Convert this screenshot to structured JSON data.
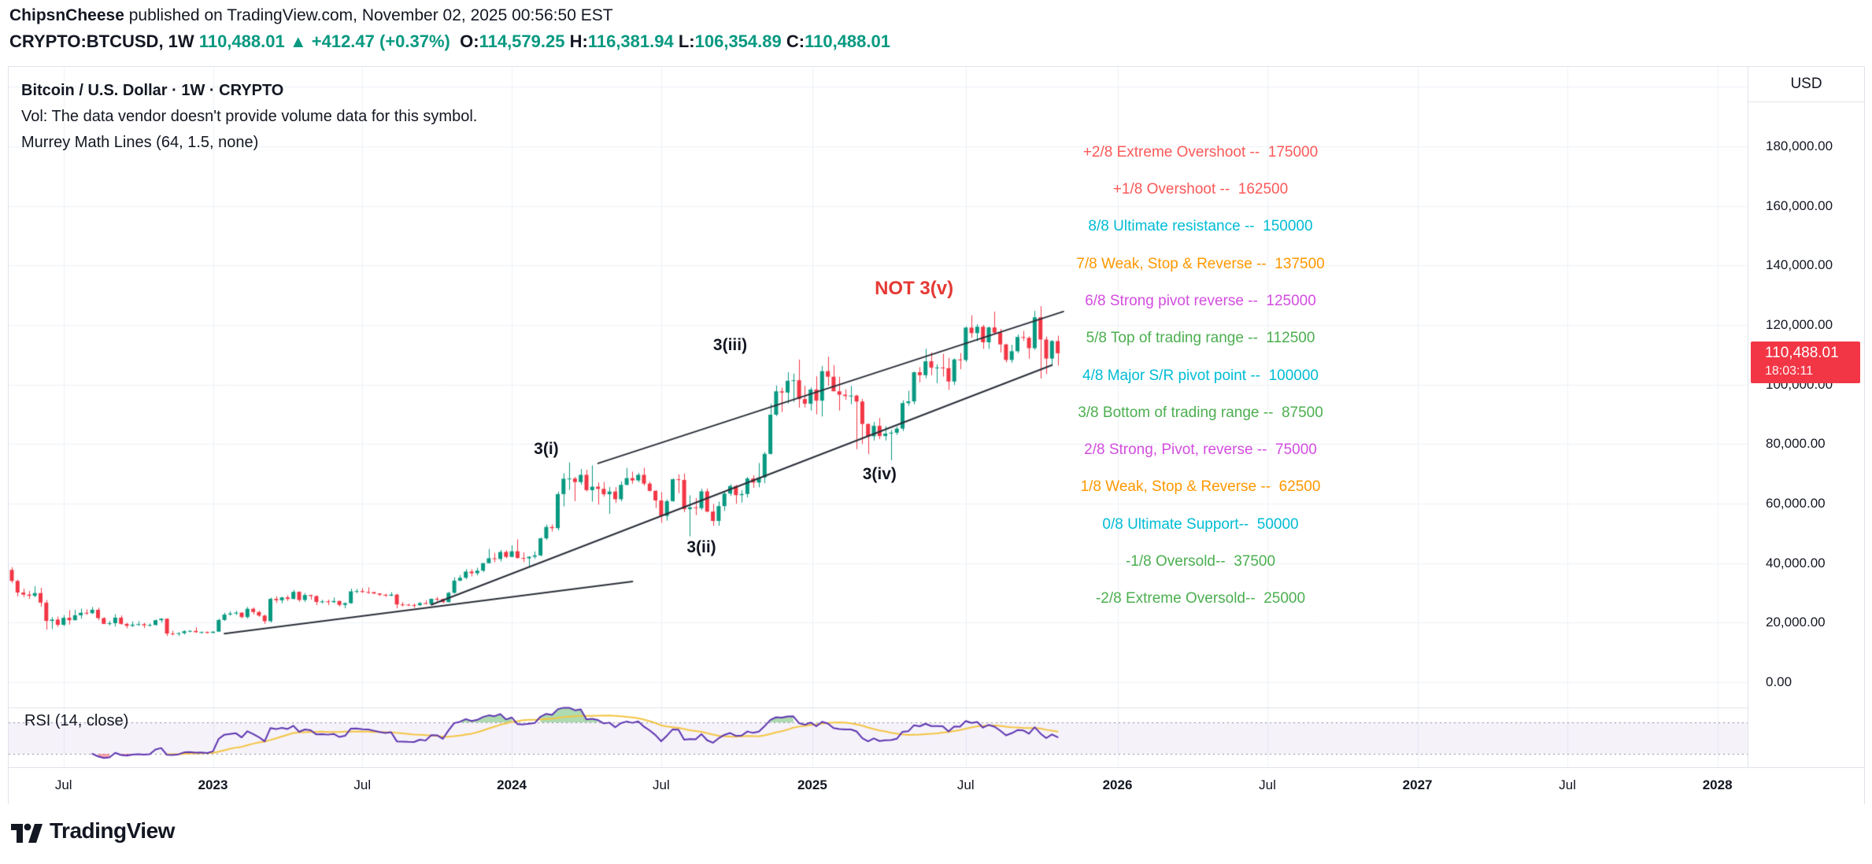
{
  "page": {
    "header_line1": {
      "author": "ChipsnCheese",
      "rest": " published on TradingView.com, November 02, 2025 00:56:50 EST"
    },
    "header_line2": {
      "symbol": "CRYPTO:BTCUSD, 1W",
      "price": "110,488.01",
      "arrow": "▲",
      "change": "+412.47 (+0.37%)",
      "o_label": "O:",
      "o": "114,579.25",
      "h_label": "H:",
      "h": "116,381.94",
      "l_label": "L:",
      "l": "106,354.89",
      "c_label": "C:",
      "c": "110,488.01"
    }
  },
  "legend": {
    "title": "Bitcoin / U.S. Dollar · 1W · CRYPTO",
    "vol_note": "Vol: The data vendor doesn't provide volume data for this symbol.",
    "indicator": "Murrey Math Lines (64, 1.5, none)"
  },
  "price_axis": {
    "currency": "USD",
    "labels": [
      "180,000.00",
      "160,000.00",
      "140,000.00",
      "120,000.00",
      "100,000.00",
      "80,000.00",
      "60,000.00",
      "40,000.00",
      "20,000.00",
      "0.00"
    ],
    "values": [
      180000,
      160000,
      140000,
      120000,
      100000,
      80000,
      60000,
      40000,
      20000,
      0
    ],
    "last_price": "110,488.01",
    "last_value": 110488.01,
    "countdown": "18:03:11",
    "badge_color": "#f23645"
  },
  "time_axis": [
    {
      "label": "Jul",
      "week": 9,
      "year": false
    },
    {
      "label": "2023",
      "week": 35,
      "year": true
    },
    {
      "label": "Jul",
      "week": 61,
      "year": false
    },
    {
      "label": "2024",
      "week": 87,
      "year": true
    },
    {
      "label": "Jul",
      "week": 113,
      "year": false
    },
    {
      "label": "2025",
      "week": 139.3,
      "year": true
    },
    {
      "label": "Jul",
      "week": 166,
      "year": false
    },
    {
      "label": "2026",
      "week": 192.4,
      "year": true
    },
    {
      "label": "Jul",
      "week": 218.5,
      "year": false
    },
    {
      "label": "2027",
      "week": 244.6,
      "year": true
    },
    {
      "label": "Jul",
      "week": 270.7,
      "year": false
    },
    {
      "label": "2028",
      "week": 296.8,
      "year": true
    }
  ],
  "murrey_levels": [
    {
      "text": "+2/8 Extreme Overshoot --  175000",
      "price": 175000,
      "color": "#fb5858"
    },
    {
      "text": "+1/8 Overshoot --  162500",
      "price": 162500,
      "color": "#fb5858"
    },
    {
      "text": "8/8 Ultimate resistance --  150000",
      "price": 150000,
      "color": "#00bcd4"
    },
    {
      "text": "7/8 Weak, Stop & Reverse --  137500",
      "price": 137500,
      "color": "#ff9800"
    },
    {
      "text": "6/8 Strong pivot reverse --  125000",
      "price": 125000,
      "color": "#d34ddf"
    },
    {
      "text": "5/8 Top of trading range --  112500",
      "price": 112500,
      "color": "#4caf50"
    },
    {
      "text": "4/8 Major S/R pivot point --  100000",
      "price": 100000,
      "color": "#00bcd4"
    },
    {
      "text": "3/8 Bottom of trading range --  87500",
      "price": 87500,
      "color": "#4caf50"
    },
    {
      "text": "2/8 Strong, Pivot, reverse --  75000",
      "price": 75000,
      "color": "#d34ddf"
    },
    {
      "text": "1/8 Weak, Stop & Reverse --  62500",
      "price": 62500,
      "color": "#ff9800"
    },
    {
      "text": "0/8 Ultimate Support--  50000",
      "price": 50000,
      "color": "#00bcd4"
    },
    {
      "text": "-1/8 Oversold--  37500",
      "price": 37500,
      "color": "#4caf50"
    },
    {
      "text": "-2/8 Extreme Oversold--  25000",
      "price": 25000,
      "color": "#4caf50"
    }
  ],
  "wave_labels": [
    {
      "text": "3(i)",
      "week": 93,
      "price": 78200,
      "color": "#131722",
      "big": false
    },
    {
      "text": "3(ii)",
      "week": 120,
      "price": 45200,
      "color": "#131722",
      "big": false
    },
    {
      "text": "3(iii)",
      "week": 125,
      "price": 113100,
      "color": "#131722",
      "big": false
    },
    {
      "text": "3(iv)",
      "week": 151,
      "price": 69800,
      "color": "#131722",
      "big": false
    },
    {
      "text": "NOT 3(v)",
      "week": 157,
      "price": 132100,
      "color": "#e53935",
      "big": true
    }
  ],
  "trendlines": [
    {
      "w1": 37,
      "p1": 16300,
      "w2": 108,
      "p2": 33800
    },
    {
      "w1": 73,
      "p1": 26000,
      "w2": 181,
      "p2": 106500
    },
    {
      "w1": 102,
      "p1": 73500,
      "w2": 183,
      "p2": 124500
    }
  ],
  "rsi_pane": {
    "label": "RSI (14, close)",
    "period": 14,
    "upper": 70,
    "lower": 30,
    "line_color": "#5e35b1",
    "ma_color": "#f4c542",
    "band_fill": "rgba(126,87,194,0.08)",
    "band_line_color": "#8a8d98",
    "overbought_fill": "rgba(76,175,80,0.45)",
    "oversold_fill": "rgba(242,54,69,0.45)"
  },
  "footer": {
    "logo_text": "TradingView"
  },
  "chart_data": {
    "type": "candlestick",
    "title": "Bitcoin / U.S. Dollar",
    "symbol": "BTCUSD",
    "exchange": "CRYPTO",
    "timeframe": "1W",
    "ylim": [
      -8500,
      206700
    ],
    "up_color": "#089981",
    "down_color": "#f23645",
    "grid_color": "#eef1f7",
    "trendline_color": "#2a2e39",
    "ohlc": [
      [
        37700,
        38600,
        33300,
        34000
      ],
      [
        34000,
        34400,
        28800,
        30100
      ],
      [
        30100,
        31400,
        28600,
        29400
      ],
      [
        29400,
        30600,
        28000,
        29000
      ],
      [
        29000,
        32200,
        28500,
        29900
      ],
      [
        29900,
        31700,
        25300,
        26700
      ],
      [
        26700,
        27600,
        17600,
        20550
      ],
      [
        20550,
        21800,
        17800,
        21000
      ],
      [
        21000,
        22000,
        18600,
        19250
      ],
      [
        19250,
        22500,
        18800,
        21600
      ],
      [
        21600,
        24200,
        19300,
        20800
      ],
      [
        20800,
        24300,
        20750,
        22450
      ],
      [
        22450,
        24700,
        21300,
        23300
      ],
      [
        23300,
        24500,
        22600,
        23175
      ],
      [
        23175,
        25200,
        22850,
        24300
      ],
      [
        24300,
        25000,
        20800,
        21500
      ],
      [
        21500,
        21800,
        19500,
        19550
      ],
      [
        19550,
        20550,
        19000,
        19800
      ],
      [
        19800,
        22800,
        18650,
        21650
      ],
      [
        21650,
        22400,
        19300,
        19550
      ],
      [
        19550,
        19950,
        18100,
        18925
      ],
      [
        18925,
        20380,
        18500,
        19300
      ],
      [
        19300,
        20450,
        18900,
        19450
      ],
      [
        19450,
        19950,
        18150,
        19070
      ],
      [
        19070,
        19700,
        18700,
        19200
      ],
      [
        19200,
        21000,
        19000,
        20800
      ],
      [
        20800,
        21500,
        20000,
        21300
      ],
      [
        21300,
        21400,
        15500,
        16300
      ],
      [
        16300,
        17200,
        15750,
        16250
      ],
      [
        16250,
        16750,
        15500,
        16450
      ],
      [
        16450,
        17400,
        16000,
        17100
      ],
      [
        17100,
        17450,
        16750,
        17200
      ],
      [
        17200,
        18400,
        16550,
        16780
      ],
      [
        16780,
        17000,
        16250,
        16840
      ],
      [
        16840,
        17000,
        16350,
        16540
      ],
      [
        16540,
        17050,
        16450,
        16950
      ],
      [
        16950,
        21300,
        16900,
        20880
      ],
      [
        20880,
        23350,
        20550,
        22700
      ],
      [
        22700,
        23800,
        22300,
        23030
      ],
      [
        23030,
        23950,
        22500,
        23330
      ],
      [
        23330,
        23450,
        21450,
        21860
      ],
      [
        21860,
        25250,
        21350,
        24630
      ],
      [
        24630,
        25100,
        22750,
        23560
      ],
      [
        23560,
        23900,
        21950,
        22350
      ],
      [
        22350,
        22650,
        19550,
        20470
      ],
      [
        20470,
        28400,
        20050,
        27970
      ],
      [
        27970,
        28850,
        26600,
        27500
      ],
      [
        27500,
        28600,
        26500,
        28470
      ],
      [
        28470,
        29150,
        27250,
        27950
      ],
      [
        27950,
        31000,
        27800,
        30320
      ],
      [
        30320,
        30500,
        27000,
        27600
      ],
      [
        27600,
        29900,
        26950,
        29250
      ],
      [
        29250,
        29350,
        27700,
        28900
      ],
      [
        28900,
        29150,
        25850,
        26930
      ],
      [
        26930,
        27650,
        26400,
        27120
      ],
      [
        27120,
        27700,
        25850,
        26870
      ],
      [
        26870,
        28450,
        26550,
        27250
      ],
      [
        27250,
        27400,
        25400,
        25940
      ],
      [
        25940,
        26800,
        24800,
        26510
      ],
      [
        26510,
        31400,
        26300,
        30480
      ],
      [
        30480,
        31300,
        29850,
        30590
      ],
      [
        30590,
        31550,
        29950,
        30290
      ],
      [
        30290,
        31850,
        29700,
        30230
      ],
      [
        30230,
        30350,
        29550,
        29790
      ],
      [
        29790,
        29850,
        28900,
        29350
      ],
      [
        29350,
        29700,
        28600,
        29050
      ],
      [
        29050,
        30200,
        28850,
        29400
      ],
      [
        29400,
        29650,
        24800,
        26100
      ],
      [
        26100,
        26850,
        25350,
        26000
      ],
      [
        26000,
        26350,
        25550,
        25870
      ],
      [
        25870,
        26450,
        24950,
        25830
      ],
      [
        25830,
        26900,
        25600,
        26530
      ],
      [
        26530,
        27500,
        26100,
        26250
      ],
      [
        26250,
        28050,
        26100,
        27980
      ],
      [
        27980,
        28600,
        27200,
        27920
      ],
      [
        27920,
        28100,
        26550,
        26860
      ],
      [
        26860,
        30350,
        26800,
        29990
      ],
      [
        29990,
        35200,
        29700,
        34090
      ],
      [
        34090,
        35950,
        33900,
        35050
      ],
      [
        35050,
        37950,
        34550,
        37140
      ],
      [
        37140,
        37950,
        35550,
        36580
      ],
      [
        36580,
        38450,
        35850,
        37450
      ],
      [
        37450,
        40000,
        36900,
        39970
      ],
      [
        39970,
        44750,
        39950,
        41600
      ],
      [
        41600,
        43450,
        40200,
        41370
      ],
      [
        41370,
        44400,
        40550,
        43720
      ],
      [
        43720,
        44250,
        41600,
        42070
      ],
      [
        42070,
        45950,
        42000,
        43950
      ],
      [
        43950,
        47950,
        41500,
        41700
      ],
      [
        41700,
        43600,
        40300,
        41580
      ],
      [
        41580,
        42250,
        38500,
        42120
      ],
      [
        42120,
        43900,
        41400,
        42580
      ],
      [
        42580,
        48600,
        42250,
        48300
      ],
      [
        48300,
        52900,
        47750,
        52120
      ],
      [
        52120,
        52990,
        50600,
        51730
      ],
      [
        51730,
        64000,
        50950,
        63170
      ],
      [
        63170,
        70200,
        59050,
        68330
      ],
      [
        68330,
        73800,
        64550,
        68390
      ],
      [
        68390,
        68950,
        60800,
        67210
      ],
      [
        67210,
        71600,
        66350,
        69640
      ],
      [
        69640,
        71350,
        64060,
        64500
      ],
      [
        64500,
        72800,
        60650,
        65650
      ],
      [
        65650,
        67100,
        59650,
        64940
      ],
      [
        64940,
        67250,
        62300,
        63110
      ],
      [
        63110,
        65550,
        56550,
        64030
      ],
      [
        64030,
        65500,
        60200,
        61450
      ],
      [
        61450,
        67450,
        60750,
        66270
      ],
      [
        66270,
        71950,
        66100,
        68530
      ],
      [
        68530,
        70700,
        66650,
        67760
      ],
      [
        67760,
        70300,
        67150,
        69640
      ],
      [
        69640,
        72000,
        66050,
        66680
      ],
      [
        66680,
        67300,
        64060,
        64260
      ],
      [
        64260,
        64500,
        58450,
        61030
      ],
      [
        61030,
        63850,
        53500,
        55850
      ],
      [
        55850,
        61400,
        54250,
        60800
      ],
      [
        60800,
        68450,
        60600,
        68150
      ],
      [
        68150,
        69800,
        63450,
        67910
      ],
      [
        67910,
        70100,
        57100,
        58120
      ],
      [
        58120,
        62750,
        49000,
        58700
      ],
      [
        58700,
        61850,
        56100,
        58440
      ],
      [
        58440,
        64950,
        57850,
        64090
      ],
      [
        64090,
        65050,
        57000,
        57300
      ],
      [
        57300,
        59850,
        52550,
        54160
      ],
      [
        54160,
        60650,
        52550,
        59130
      ],
      [
        59130,
        63850,
        57500,
        63330
      ],
      [
        63330,
        66500,
        62550,
        65890
      ],
      [
        65890,
        66250,
        59900,
        62820
      ],
      [
        62820,
        64500,
        60300,
        63200
      ],
      [
        63200,
        68950,
        62050,
        68400
      ],
      [
        68400,
        69500,
        65250,
        67050
      ],
      [
        67050,
        73600,
        65450,
        68740
      ],
      [
        68740,
        77300,
        66800,
        76680
      ],
      [
        76680,
        93450,
        76450,
        89850
      ],
      [
        89850,
        99650,
        89350,
        97700
      ],
      [
        97700,
        98950,
        90750,
        97280
      ],
      [
        97280,
        104100,
        93600,
        101240
      ],
      [
        101240,
        103650,
        94150,
        101420
      ],
      [
        101420,
        108350,
        92250,
        95100
      ],
      [
        95100,
        99550,
        92300,
        93530
      ],
      [
        93530,
        99000,
        91250,
        98300
      ],
      [
        98300,
        102750,
        89950,
        94570
      ],
      [
        94570,
        106200,
        89250,
        104460
      ],
      [
        104460,
        109350,
        99550,
        102600
      ],
      [
        102600,
        106500,
        97800,
        97700
      ],
      [
        97700,
        102550,
        91250,
        96560
      ],
      [
        96560,
        98350,
        94850,
        96120
      ],
      [
        96120,
        99500,
        93350,
        96250
      ],
      [
        96250,
        96550,
        78250,
        94270
      ],
      [
        94270,
        95150,
        80000,
        86740
      ],
      [
        86740,
        86850,
        76600,
        82600
      ],
      [
        82600,
        87450,
        81150,
        86100
      ],
      [
        86100,
        88750,
        81650,
        82680
      ],
      [
        82680,
        86000,
        81200,
        83500
      ],
      [
        83500,
        84700,
        74500,
        83800
      ],
      [
        83800,
        85850,
        83050,
        85170
      ],
      [
        85170,
        94700,
        84350,
        93750
      ],
      [
        93750,
        97900,
        92850,
        94320
      ],
      [
        94320,
        104300,
        93350,
        104110
      ],
      [
        104110,
        105800,
        100700,
        103120
      ],
      [
        103120,
        111980,
        102100,
        107790
      ],
      [
        107790,
        110750,
        103100,
        105640
      ],
      [
        105640,
        106800,
        100400,
        105690
      ],
      [
        105690,
        110300,
        102650,
        105480
      ],
      [
        105480,
        108950,
        98200,
        100990
      ],
      [
        100990,
        108800,
        99850,
        108390
      ],
      [
        108390,
        110550,
        105100,
        108220
      ],
      [
        108220,
        119500,
        107550,
        119110
      ],
      [
        119110,
        123250,
        115700,
        117260
      ],
      [
        117260,
        120250,
        114500,
        119400
      ],
      [
        119400,
        120000,
        112000,
        114170
      ],
      [
        114170,
        119450,
        111950,
        119160
      ],
      [
        119160,
        124500,
        116850,
        117400
      ],
      [
        117400,
        118650,
        110750,
        113460
      ],
      [
        113460,
        113700,
        107400,
        108240
      ],
      [
        108240,
        113350,
        107300,
        111170
      ],
      [
        111170,
        116800,
        110550,
        115950
      ],
      [
        115950,
        118000,
        114650,
        115670
      ],
      [
        115670,
        116150,
        108650,
        112200
      ],
      [
        112200,
        124750,
        111650,
        122550
      ],
      [
        122550,
        126300,
        102000,
        115100
      ],
      [
        115100,
        116100,
        103500,
        108700
      ],
      [
        108700,
        114900,
        106300,
        114590
      ],
      [
        114579,
        116382,
        106355,
        110488
      ]
    ]
  }
}
